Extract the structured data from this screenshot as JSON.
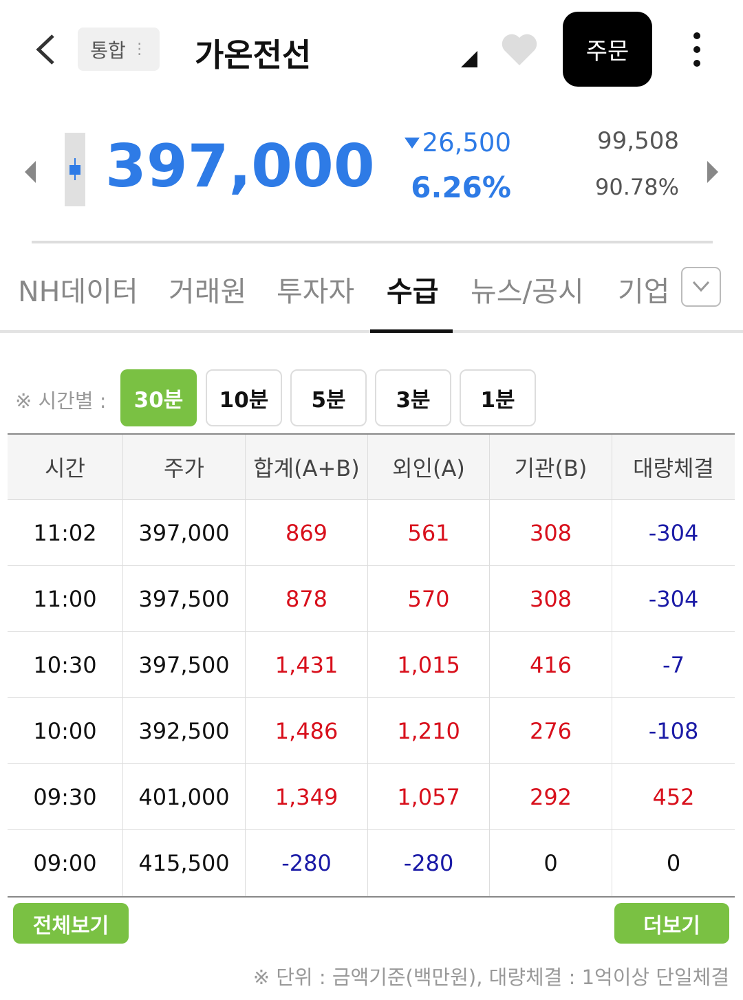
{
  "header": {
    "category": "통합",
    "title": "가온전선",
    "order_button": "주문"
  },
  "quote": {
    "price": "397,000",
    "change": "26,500",
    "change_rate": "6.26%",
    "volume": "99,508",
    "volume_rate": "90.78%"
  },
  "tabs": {
    "items": [
      "NH데이터",
      "거래원",
      "투자자",
      "수급",
      "뉴스/공시",
      "기업"
    ],
    "active": 3
  },
  "filter": {
    "label": "※ 시간별 :",
    "options": [
      "30분",
      "10분",
      "5분",
      "3분",
      "1분"
    ],
    "selected": 0
  },
  "table": {
    "columns": [
      "시간",
      "주가",
      "합계(A+B)",
      "외인(A)",
      "기관(B)",
      "대량체결"
    ],
    "rows": [
      [
        "11:02",
        "397,000",
        "869",
        "561",
        "308",
        "-304"
      ],
      [
        "11:00",
        "397,500",
        "878",
        "570",
        "308",
        "-304"
      ],
      [
        "10:30",
        "397,500",
        "1,431",
        "1,015",
        "416",
        "-7"
      ],
      [
        "10:00",
        "392,500",
        "1,486",
        "1,210",
        "276",
        "-108"
      ],
      [
        "09:30",
        "401,000",
        "1,349",
        "1,057",
        "292",
        "452"
      ],
      [
        "09:00",
        "415,500",
        "-280",
        "-280",
        "0",
        "0"
      ]
    ]
  },
  "buttons": {
    "view_all": "전체보기",
    "more": "더보기"
  },
  "footnote": "※ 단위 : 금액기준(백만원), 대량체결 : 1억이상 단일체결"
}
